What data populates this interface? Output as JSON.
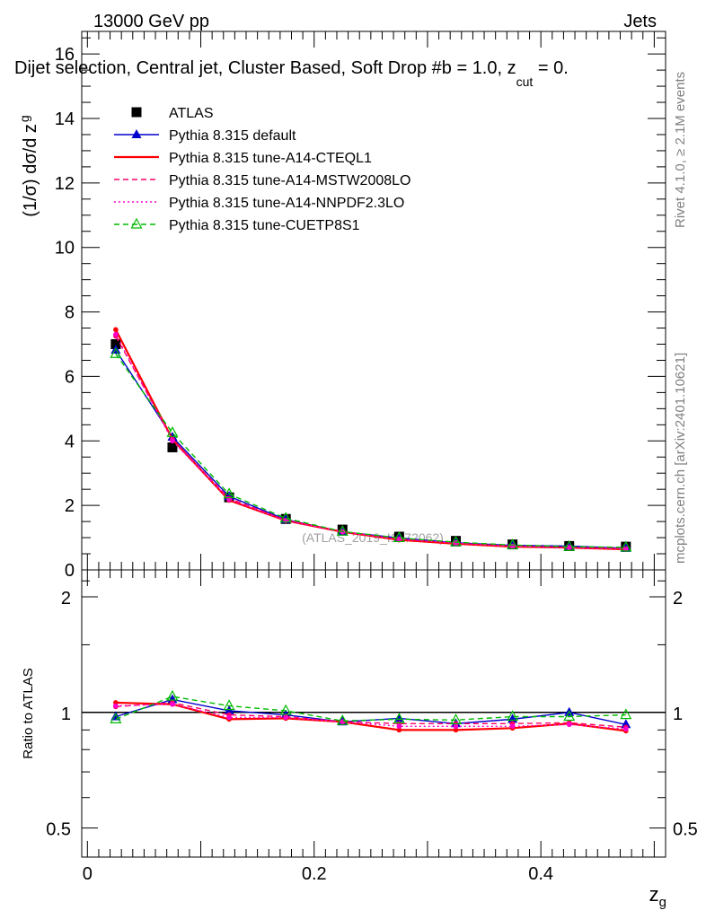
{
  "header": {
    "energy_label": "13000 GeV pp",
    "category_label": "Jets",
    "analysis_title": "Dijet selection, Central jet, Cluster Based, Soft Drop #b = 1.0, z",
    "analysis_title_sub": "cut",
    "analysis_title_tail": " = 0.",
    "watermark": "(ATLAS_2019_I1772062)",
    "side_label_rivet": "Rivet 4.1.0, ≥ 2.1M events",
    "side_label_mcplots": "mcplots.cern.ch [arXiv:2401.10621]"
  },
  "chart_data": [
    {
      "panel": "main",
      "type": "line",
      "ylabel_main": "(1/σ) dσ/d z",
      "ylabel_sub": "g",
      "xlabel": "z",
      "xlabel_sub": "g",
      "xlim": [
        -0.005,
        0.51
      ],
      "ylim": [
        0,
        16.7
      ],
      "yticks": [
        0,
        2,
        4,
        6,
        8,
        10,
        12,
        14,
        16
      ],
      "ytick_labels": [
        "0",
        "2",
        "4",
        "6",
        "8",
        "10",
        "12",
        "14",
        "16"
      ],
      "x": [
        0.025,
        0.075,
        0.125,
        0.175,
        0.225,
        0.275,
        0.325,
        0.375,
        0.425,
        0.475
      ],
      "series": [
        {
          "name": "ATLAS",
          "style": "data",
          "color": "#000000",
          "values": [
            7.0,
            3.8,
            2.25,
            1.58,
            1.25,
            1.03,
            0.9,
            0.79,
            0.74,
            0.72
          ]
        },
        {
          "name": "Pythia 8.315 default",
          "style": "solid-triangle",
          "color": "#0000cc",
          "values": [
            6.82,
            4.12,
            2.28,
            1.56,
            1.18,
            0.99,
            0.84,
            0.76,
            0.74,
            0.67
          ]
        },
        {
          "name": "Pythia 8.315 tune-A14-CTEQL1",
          "style": "solid",
          "color": "#ff0000",
          "values": [
            7.45,
            4.05,
            2.16,
            1.53,
            1.18,
            0.93,
            0.81,
            0.72,
            0.69,
            0.64
          ]
        },
        {
          "name": "Pythia 8.315 tune-A14-MSTW2008LO",
          "style": "dashed",
          "color": "#ff0066",
          "values": [
            7.25,
            4.05,
            2.22,
            1.54,
            1.18,
            0.96,
            0.84,
            0.74,
            0.7,
            0.66
          ]
        },
        {
          "name": "Pythia 8.315 tune-A14-NNPDF2.3LO",
          "style": "dotted",
          "color": "#ff00cc",
          "values": [
            7.3,
            4.0,
            2.18,
            1.53,
            1.18,
            0.95,
            0.83,
            0.73,
            0.69,
            0.65
          ]
        },
        {
          "name": "Pythia 8.315 tune-CUETP8S1",
          "style": "dashed-open-triangle",
          "color": "#00bb00",
          "values": [
            6.7,
            4.25,
            2.35,
            1.6,
            1.19,
            0.99,
            0.86,
            0.77,
            0.72,
            0.7
          ]
        }
      ]
    },
    {
      "panel": "ratio",
      "type": "line",
      "ylabel": "Ratio to ATLAS",
      "yscale": "log",
      "ylim": [
        0.42,
        2.35
      ],
      "yticks": [
        0.5,
        1,
        2
      ],
      "ytick_labels": [
        "0.5",
        "1",
        "2"
      ],
      "xticks": [
        0,
        0.2,
        0.4
      ],
      "xtick_labels": [
        "0",
        "0.2",
        "0.4"
      ],
      "x": [
        0.025,
        0.075,
        0.125,
        0.175,
        0.225,
        0.275,
        0.325,
        0.375,
        0.425,
        0.475
      ],
      "series": [
        {
          "name": "Pythia 8.315 default",
          "style": "solid-triangle",
          "color": "#0000cc",
          "values": [
            0.975,
            1.08,
            1.01,
            0.985,
            0.945,
            0.965,
            0.935,
            0.96,
            1.0,
            0.93
          ]
        },
        {
          "name": "Pythia 8.315 tune-A14-CTEQL1",
          "style": "solid",
          "color": "#ff0000",
          "values": [
            1.06,
            1.05,
            0.96,
            0.965,
            0.945,
            0.9,
            0.9,
            0.91,
            0.935,
            0.895
          ]
        },
        {
          "name": "Pythia 8.315 tune-A14-MSTW2008LO",
          "style": "dashed",
          "color": "#ff0066",
          "values": [
            1.035,
            1.06,
            0.985,
            0.975,
            0.945,
            0.935,
            0.935,
            0.935,
            0.94,
            0.915
          ]
        },
        {
          "name": "Pythia 8.315 tune-A14-NNPDF2.3LO",
          "style": "dotted",
          "color": "#ff00cc",
          "values": [
            1.04,
            1.05,
            0.97,
            0.97,
            0.945,
            0.92,
            0.92,
            0.92,
            0.93,
            0.905
          ]
        },
        {
          "name": "Pythia 8.315 tune-CUETP8S1",
          "style": "dashed-open-triangle",
          "color": "#00bb00",
          "values": [
            0.96,
            1.1,
            1.04,
            1.01,
            0.95,
            0.96,
            0.955,
            0.975,
            0.975,
            0.985
          ]
        }
      ]
    }
  ]
}
